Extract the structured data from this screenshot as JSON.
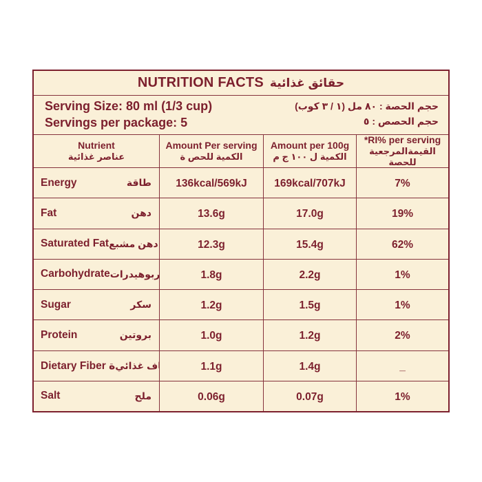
{
  "label": {
    "title": {
      "en": "NUTRITION FACTS",
      "ar": "حقائق غذائية"
    },
    "serving": {
      "en_lines": [
        "Serving Size: 80 ml (1/3 cup)",
        "Servings per package: 5"
      ],
      "ar_lines": [
        "حجم الحصة : ٨٠ مل (١ / ٣ كوب)",
        "حجم الحصص : ٥"
      ]
    },
    "columns": [
      {
        "en": "Nutrient",
        "ar": "عناصر غذائية"
      },
      {
        "en": "Amount Per serving",
        "ar": "الكمية للحص ة"
      },
      {
        "en": "Amount per 100g",
        "ar": "الكمية ل ١٠٠ ج م"
      },
      {
        "en": "*RI% per serving",
        "ar": "القيمةالمرجعية للحصة"
      }
    ],
    "rows": [
      {
        "en": "Energy",
        "ar": "طاقة",
        "per_serving": "136kcal/569kJ",
        "per_100g": "169kcal/707kJ",
        "ri": "7%"
      },
      {
        "en": "Fat",
        "ar": "دهن",
        "per_serving": "13.6g",
        "per_100g": "17.0g",
        "ri": "19%"
      },
      {
        "en": "Saturated Fat",
        "ar": "دهن مشبع",
        "per_serving": "12.3g",
        "per_100g": "15.4g",
        "ri": "62%"
      },
      {
        "en": "Carbohydrate",
        "ar": "كربوهيدرات",
        "per_serving": "1.8g",
        "per_100g": "2.2g",
        "ri": "1%"
      },
      {
        "en": "Sugar",
        "ar": "سكر",
        "per_serving": "1.2g",
        "per_100g": "1.5g",
        "ri": "1%"
      },
      {
        "en": "Protein",
        "ar": "بروتين",
        "per_serving": "1.0g",
        "per_100g": "1.2g",
        "ri": "2%"
      },
      {
        "en": "Dietary Fiber ة",
        "ar": "الياف غذائي",
        "per_serving": "1.1g",
        "per_100g": "1.4g",
        "ri": "_"
      },
      {
        "en": "Salt",
        "ar": "ملح",
        "per_serving": "0.06g",
        "per_100g": "0.07g",
        "ri": "1%"
      }
    ],
    "colors": {
      "maroon": "#7c1f2d",
      "cream": "#faf0d8",
      "page_bg": "#ffffff"
    }
  }
}
